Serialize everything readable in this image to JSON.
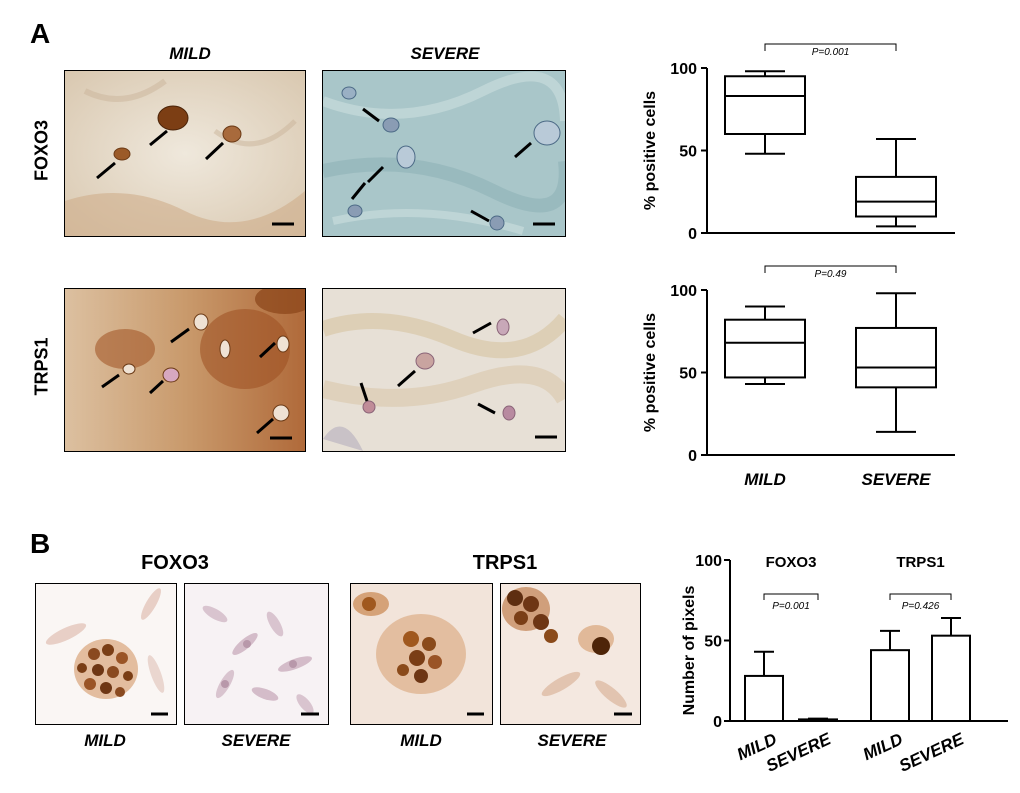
{
  "panel_a": {
    "letter": "A",
    "col_mild": "MILD",
    "col_severe": "SEVERE",
    "row_foxo3": "FOXO3",
    "row_trps1": "TRPS1"
  },
  "panel_b": {
    "letter": "B",
    "group_foxo3": "FOXO3",
    "group_trps1": "TRPS1",
    "img_labels": [
      "MILD",
      "SEVERE",
      "MILD",
      "SEVERE"
    ]
  },
  "colors": {
    "stain_brown": "#b06a3a",
    "counter_blue": "#8fb4bd",
    "line": "#000000"
  },
  "chart_data": [
    {
      "type": "box",
      "ylabel": "% positive cells",
      "categories": [
        "MILD",
        "SEVERE"
      ],
      "yticks": [
        0,
        50,
        100
      ],
      "ylim": [
        0,
        100
      ],
      "show_xlabels": false,
      "boxes": [
        {
          "min": 48,
          "q1": 60,
          "median": 83,
          "q3": 95,
          "max": 98
        },
        {
          "min": 4,
          "q1": 10,
          "median": 19,
          "q3": 34,
          "max": 57
        }
      ],
      "annotation": "P=0.001"
    },
    {
      "type": "box",
      "ylabel": "% positive cells",
      "categories": [
        "MILD",
        "SEVERE"
      ],
      "yticks": [
        0,
        50,
        100
      ],
      "ylim": [
        0,
        100
      ],
      "show_xlabels": true,
      "boxes": [
        {
          "min": 43,
          "q1": 47,
          "median": 68,
          "q3": 82,
          "max": 90
        },
        {
          "min": 14,
          "q1": 41,
          "median": 53,
          "q3": 77,
          "max": 98
        }
      ],
      "annotation": "P=0.49"
    },
    {
      "type": "bar",
      "ylabel": "Number of pixels",
      "yticks": [
        0,
        50,
        100
      ],
      "ylim": [
        0,
        100
      ],
      "categories": [
        "MILD",
        "SEVERE",
        "MILD",
        "SEVERE"
      ],
      "groups": [
        "FOXO3",
        "TRPS1"
      ],
      "values": [
        28,
        1,
        44,
        53
      ],
      "errors": [
        15,
        0.5,
        12,
        11
      ],
      "annotations": [
        "P=0.001",
        "P=0.426"
      ]
    }
  ]
}
